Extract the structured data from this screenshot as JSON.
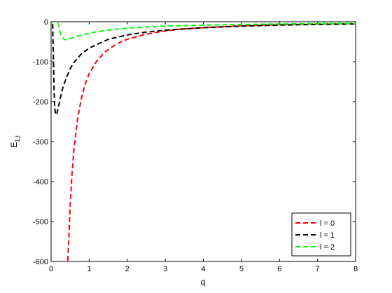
{
  "chart_data": {
    "type": "line",
    "xlabel": "q",
    "ylabel_main": "E",
    "ylabel_sub": "1,l",
    "xlim": [
      0,
      8
    ],
    "ylim": [
      -600,
      0
    ],
    "xticks": [
      0,
      1,
      2,
      3,
      4,
      5,
      6,
      7,
      8
    ],
    "yticks": [
      0,
      -100,
      -200,
      -300,
      -400,
      -500,
      -600
    ],
    "xtick_labels": [
      "0",
      "1",
      "2",
      "3",
      "4",
      "5",
      "6",
      "7",
      "8"
    ],
    "ytick_labels": [
      "0",
      "-100",
      "-200",
      "-300",
      "-400",
      "-500",
      "-600"
    ],
    "grid": false,
    "legend_position": "bottom-right",
    "series": [
      {
        "name": "l = 0",
        "color": "#ff0000",
        "x": [
          0.44,
          0.47,
          0.5,
          0.55,
          0.6,
          0.7,
          0.8,
          0.9,
          1.0,
          1.2,
          1.4,
          1.6,
          1.8,
          2.0,
          2.5,
          3.0,
          3.5,
          4.0,
          5.0,
          6.0,
          7.0,
          8.0
        ],
        "y": [
          -598,
          -530,
          -460,
          -380,
          -320,
          -240,
          -190,
          -155,
          -130,
          -98,
          -77,
          -63,
          -52,
          -44,
          -31,
          -23,
          -18,
          -15,
          -10,
          -7.5,
          -5.8,
          -4.7
        ]
      },
      {
        "name": "l = 1",
        "color": "#000000",
        "x": [
          0.04,
          0.06,
          0.08,
          0.1,
          0.12,
          0.15,
          0.2,
          0.25,
          0.3,
          0.4,
          0.5,
          0.6,
          0.8,
          1.0,
          1.5,
          2.0,
          2.5,
          3.0,
          4.0,
          5.0,
          6.0,
          7.0,
          8.0
        ],
        "y": [
          -5,
          -90,
          -175,
          -220,
          -233,
          -230,
          -210,
          -188,
          -168,
          -140,
          -118,
          -102,
          -80,
          -66,
          -44,
          -33,
          -26,
          -21,
          -15,
          -11,
          -8.5,
          -6.8,
          -5.6
        ]
      },
      {
        "name": "l = 2",
        "color": "#00ff00",
        "x": [
          0.18,
          0.22,
          0.26,
          0.3,
          0.35,
          0.4,
          0.45,
          0.55,
          0.7,
          0.9,
          1.2,
          1.5,
          2.0,
          2.5,
          3.0,
          4.0,
          5.0,
          6.0,
          7.0,
          8.0
        ],
        "y": [
          -3,
          -20,
          -33,
          -40,
          -44,
          -45,
          -44,
          -41,
          -36,
          -31,
          -25,
          -21,
          -16,
          -13,
          -11,
          -8.5,
          -6.8,
          -5.6,
          -4.8,
          -4.2
        ]
      }
    ]
  }
}
